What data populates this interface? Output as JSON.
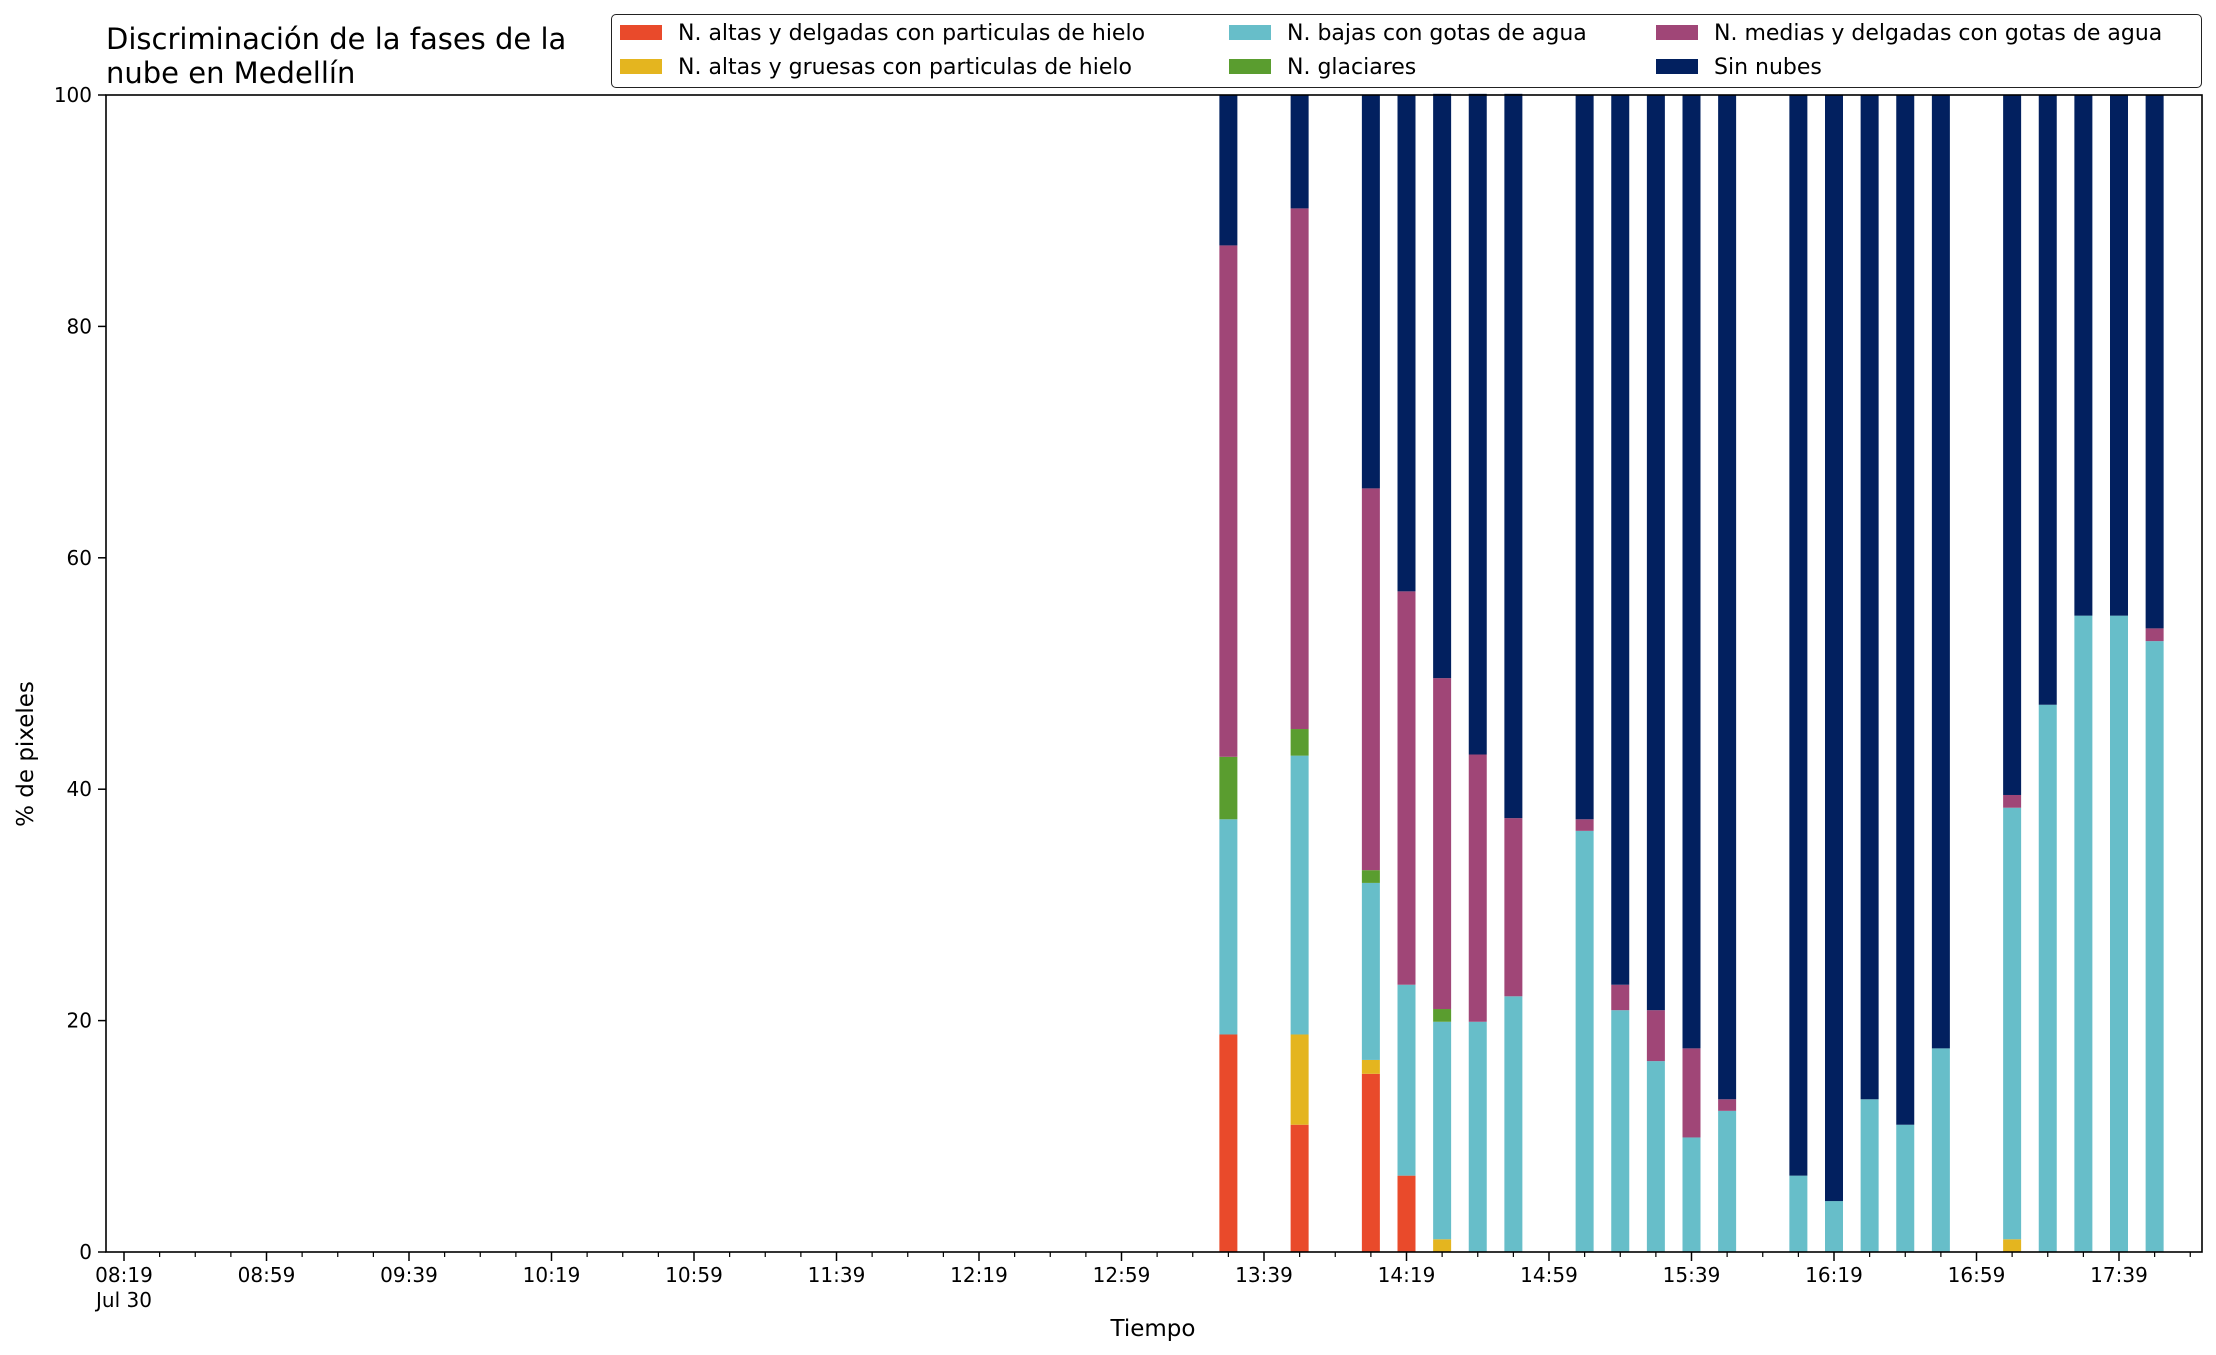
{
  "chart_data": {
    "type": "bar",
    "stacked": true,
    "title": "Discriminación de la fases de la\nnube en Medellín",
    "xlabel": "Tiempo",
    "ylabel": "% de pixeles",
    "ylim": [
      0,
      100
    ],
    "yticks": [
      "0",
      "20",
      "40",
      "60",
      "80",
      "100"
    ],
    "x_tick_labels": [
      "08:19",
      "08:59",
      "09:39",
      "10:19",
      "10:59",
      "11:39",
      "12:19",
      "12:59",
      "13:39",
      "14:19",
      "14:59",
      "15:39",
      "16:19",
      "16:59",
      "17:39"
    ],
    "x_date_label": "Jul 30",
    "legend_position": "top-right",
    "categories": [
      "13:29",
      "13:49",
      "14:09",
      "14:19",
      "14:29",
      "14:39",
      "14:49",
      "15:09",
      "15:19",
      "15:29",
      "15:39",
      "15:49",
      "16:09",
      "16:19",
      "16:29",
      "16:39",
      "16:49",
      "17:09",
      "17:19",
      "17:29",
      "17:39",
      "17:49"
    ],
    "series": [
      {
        "name": "N. altas y delgadas con particulas de hielo",
        "color": "#e94a2b",
        "values": [
          18.8,
          11,
          15.4,
          6.6,
          0,
          0,
          0,
          0,
          0,
          0,
          0,
          0,
          0,
          0,
          0,
          0,
          0,
          0,
          0,
          0,
          0,
          0
        ]
      },
      {
        "name": "N. altas y gruesas con particulas de hielo",
        "color": "#e4b51f",
        "values": [
          0,
          7.8,
          1.2,
          0,
          1.1,
          0,
          0,
          0,
          0,
          0,
          0,
          0,
          0,
          0,
          0,
          0,
          0,
          1.1,
          0,
          0,
          0,
          0
        ]
      },
      {
        "name": "N. bajas con gotas de agua",
        "color": "#67bec9",
        "values": [
          18.6,
          24.1,
          15.3,
          16.5,
          18.8,
          19.9,
          22.1,
          36.4,
          20.9,
          16.5,
          9.9,
          12.2,
          6.6,
          4.4,
          13.2,
          11,
          17.6,
          37.3,
          47.3,
          55,
          55,
          52.8
        ]
      },
      {
        "name": "N. glaciares",
        "color": "#5a9d2f",
        "values": [
          5.4,
          2.3,
          1.1,
          0,
          1.1,
          0,
          0,
          0,
          0,
          0,
          0,
          0,
          0,
          0,
          0,
          0,
          0,
          0,
          0,
          0,
          0,
          0
        ]
      },
      {
        "name": "N. medias y delgadas con gotas de agua",
        "color": "#a04677",
        "values": [
          44.2,
          45,
          33,
          34,
          28.6,
          23.1,
          15.4,
          1,
          2.2,
          4.4,
          7.7,
          1,
          0,
          0,
          0,
          0,
          0,
          1.1,
          0,
          0,
          0,
          1.1
        ]
      },
      {
        "name": "Sin nubes",
        "color": "#02205f",
        "values": [
          13,
          9.8,
          34,
          42.9,
          50.5,
          57.1,
          62.6,
          62.6,
          76.9,
          79.1,
          82.4,
          86.8,
          93.4,
          95.6,
          86.8,
          89,
          82.4,
          60.5,
          52.7,
          45,
          45,
          46.1
        ]
      }
    ]
  }
}
